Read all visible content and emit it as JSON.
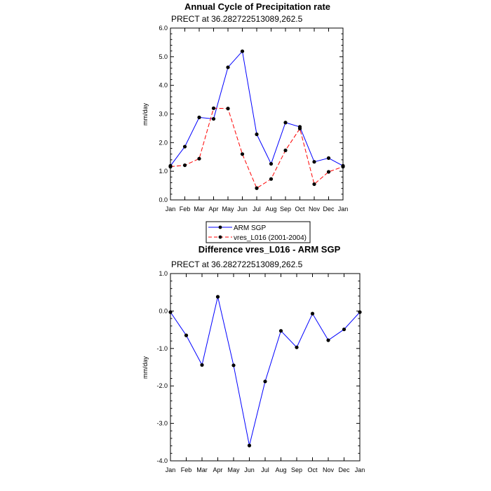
{
  "chart_data": [
    {
      "type": "line",
      "title": "Annual Cycle of Precipitation rate",
      "subtitle": "PRECT at 36.282722513089,262.5",
      "ylabel": "mm/day",
      "ylim": [
        0,
        6
      ],
      "yticks": [
        "0.0",
        "1.0",
        "2.0",
        "3.0",
        "4.0",
        "5.0",
        "6.0"
      ],
      "categories": [
        "Jan",
        "Feb",
        "Mar",
        "Apr",
        "May",
        "Jun",
        "Jul",
        "Aug",
        "Sep",
        "Oct",
        "Nov",
        "Dec",
        "Jan"
      ],
      "series": [
        {
          "name": "ARM SGP",
          "color": "#0000ff",
          "dash": "solid",
          "values": [
            1.19,
            1.86,
            2.88,
            2.83,
            4.63,
            5.19,
            2.29,
            1.26,
            2.7,
            2.55,
            1.33,
            1.46,
            1.19
          ]
        },
        {
          "name": "vres_L016 (2001-2004)",
          "color": "#ff0000",
          "dash": "dashed",
          "values": [
            1.16,
            1.21,
            1.44,
            3.2,
            3.19,
            1.6,
            0.41,
            0.73,
            1.73,
            2.49,
            0.55,
            0.98,
            1.16
          ]
        }
      ],
      "legend": "below"
    },
    {
      "type": "line",
      "title": "Difference vres_L016 - ARM SGP",
      "subtitle": "PRECT at 36.282722513089,262.5",
      "ylabel": "mm/day",
      "ylim": [
        -4,
        1
      ],
      "yticks": [
        "-4.0",
        "-3.0",
        "-2.0",
        "-1.0",
        "0.0",
        "1.0"
      ],
      "categories": [
        "Jan",
        "Feb",
        "Mar",
        "Apr",
        "May",
        "Jun",
        "Jul",
        "Aug",
        "Sep",
        "Oct",
        "Nov",
        "Dec",
        "Jan"
      ],
      "series": [
        {
          "name": "",
          "color": "#0000ff",
          "dash": "solid",
          "values": [
            -0.03,
            -0.65,
            -1.44,
            0.38,
            -1.45,
            -3.59,
            -1.88,
            -0.53,
            -0.97,
            -0.07,
            -0.78,
            -0.49,
            -0.03
          ]
        }
      ]
    }
  ]
}
